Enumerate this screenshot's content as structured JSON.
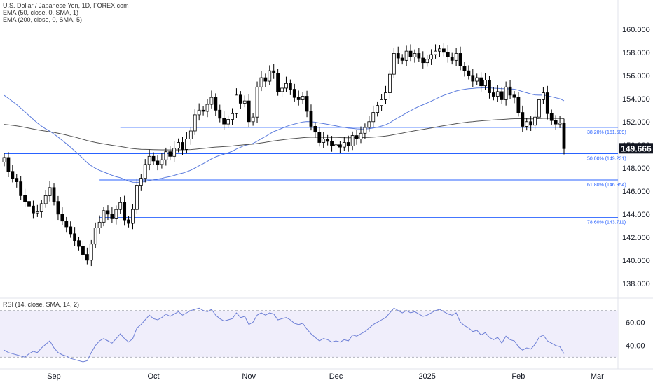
{
  "chart_data": {
    "type": "candlestick",
    "title": "U.S. Dollar / Japanese Yen, 1D, FOREX.com",
    "indicators": [
      "EMA (50, close, 0, SMA, 1)",
      "EMA (200, close, 0, SMA, 5)"
    ],
    "rsi_label": "RSI (14, close, SMA, 14, 2)",
    "last_price": "149.666",
    "y_ticks": [
      "160.000",
      "158.000",
      "156.000",
      "154.000",
      "152.000",
      "150.000",
      "148.000",
      "146.000",
      "144.000",
      "142.000",
      "140.000",
      "138.000"
    ],
    "y_tick_values": [
      160,
      158,
      156,
      154,
      152,
      150,
      148,
      146,
      144,
      142,
      140,
      138
    ],
    "ylim": [
      137.2,
      161.2
    ],
    "rsi_ticks": [
      "60.00",
      "40.00"
    ],
    "rsi_tick_values": [
      60,
      40
    ],
    "rsi_range": [
      26,
      74
    ],
    "x_ticks": [
      {
        "label": "Sep",
        "bar": 12
      },
      {
        "label": "Oct",
        "bar": 36
      },
      {
        "label": "Nov",
        "bar": 59
      },
      {
        "label": "Dec",
        "bar": 80
      },
      {
        "label": "2025",
        "bar": 102
      },
      {
        "label": "Feb",
        "bar": 124
      },
      {
        "label": "Mar",
        "bar": 143
      }
    ],
    "fib_levels": [
      {
        "label": "38.20% (151.509)",
        "value": 151.509
      },
      {
        "label": "50.00% (149.231)",
        "value": 149.231
      },
      {
        "label": "61.80% (146.954)",
        "value": 146.954
      },
      {
        "label": "78.60% (143.711)",
        "value": 143.711
      }
    ],
    "closes": [
      148.9,
      147.7,
      147.1,
      146.8,
      145.6,
      145.1,
      144.7,
      144.1,
      144.2,
      144.9,
      145.6,
      146.3,
      145.1,
      144.0,
      143.4,
      142.9,
      142.3,
      141.7,
      141.2,
      140.5,
      140.0,
      141.4,
      142.8,
      143.3,
      144.3,
      144.0,
      143.6,
      144.4,
      145.0,
      143.5,
      143.2,
      144.4,
      146.5,
      147.1,
      148.3,
      149.0,
      148.6,
      148.3,
      148.7,
      149.4,
      149.0,
      149.7,
      150.2,
      149.6,
      150.5,
      151.2,
      152.6,
      153.0,
      152.9,
      153.5,
      154.1,
      153.0,
      152.3,
      151.8,
      152.2,
      152.7,
      154.3,
      153.6,
      153.8,
      152.0,
      152.4,
      155.0,
      155.8,
      155.5,
      156.4,
      156.2,
      154.6,
      154.9,
      155.3,
      154.8,
      154.1,
      153.9,
      154.2,
      152.9,
      151.6,
      151.1,
      150.2,
      150.5,
      150.3,
      149.9,
      150.0,
      149.8,
      150.2,
      149.9,
      150.8,
      150.5,
      151.0,
      151.5,
      152.0,
      152.8,
      153.4,
      153.9,
      154.5,
      156.1,
      157.9,
      157.5,
      157.3,
      158.1,
      157.6,
      157.9,
      157.5,
      157.1,
      157.4,
      157.8,
      158.1,
      158.3,
      158.0,
      157.6,
      157.3,
      157.9,
      156.8,
      156.4,
      156.0,
      155.5,
      155.8,
      155.1,
      155.6,
      154.5,
      154.2,
      154.6,
      153.9,
      155.0,
      154.3,
      154.1,
      152.8,
      151.6,
      152.0,
      151.7,
      152.4,
      153.9,
      154.5,
      152.7,
      152.1,
      151.8,
      151.9,
      149.67
    ],
    "rsi_values": [
      36,
      34,
      33,
      32,
      31,
      30,
      33,
      35,
      34,
      38,
      41,
      44,
      38,
      34,
      32,
      31,
      29,
      28,
      27,
      26,
      27,
      34,
      40,
      44,
      46,
      44,
      42,
      46,
      50,
      46,
      43,
      46,
      55,
      58,
      62,
      66,
      63,
      62,
      64,
      67,
      65,
      67,
      69,
      66,
      68,
      70,
      71,
      72,
      70,
      69,
      71,
      66,
      63,
      61,
      62,
      63,
      68,
      64,
      65,
      58,
      60,
      66,
      68,
      66,
      68,
      67,
      62,
      63,
      64,
      62,
      59,
      58,
      59,
      54,
      50,
      47,
      44,
      46,
      45,
      43,
      44,
      43,
      45,
      44,
      49,
      48,
      50,
      52,
      55,
      58,
      60,
      62,
      64,
      68,
      72,
      70,
      68,
      70,
      68,
      69,
      67,
      65,
      66,
      68,
      70,
      71,
      69,
      67,
      66,
      68,
      60,
      57,
      55,
      52,
      53,
      49,
      51,
      47,
      45,
      47,
      42,
      48,
      45,
      44,
      39,
      36,
      38,
      37,
      41,
      47,
      49,
      44,
      42,
      40,
      39,
      33
    ]
  }
}
